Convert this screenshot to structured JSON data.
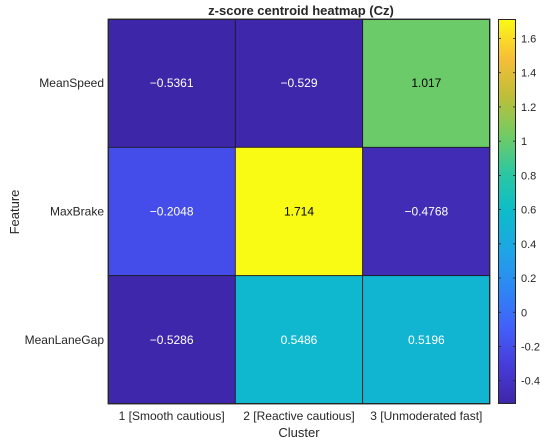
{
  "chart_data": {
    "type": "heatmap",
    "title": "z-score centroid heatmap  (Cz)",
    "xlabel": "Cluster",
    "ylabel": "Feature",
    "x_categories": [
      "1 [Smooth cautious]",
      "2 [Reactive cautious]",
      "3 [Unmoderated fast]"
    ],
    "y_categories": [
      "MeanSpeed",
      "MaxBrake",
      "MeanLaneGap"
    ],
    "values": [
      [
        -0.5361,
        -0.529,
        1.017
      ],
      [
        -0.2048,
        1.714,
        -0.4768
      ],
      [
        -0.5286,
        0.5486,
        0.5196
      ]
    ],
    "value_labels": [
      [
        "−0.5361",
        "−0.529",
        "1.017"
      ],
      [
        "−0.2048",
        "1.714",
        "−0.4768"
      ],
      [
        "−0.5286",
        "0.5486",
        "0.5196"
      ]
    ],
    "colormap": "parula",
    "colorbar": {
      "range": [
        -0.5361,
        1.714
      ],
      "ticks": [
        -0.4,
        -0.2,
        0,
        0.2,
        0.4,
        0.6,
        0.8,
        1,
        1.2,
        1.4,
        1.6
      ],
      "tick_labels": [
        "-0.4",
        "-0.2",
        "0",
        "0.2",
        "0.4",
        "0.6",
        "0.8",
        "1",
        "1.2",
        "1.4",
        "1.6"
      ]
    },
    "grid": false
  }
}
